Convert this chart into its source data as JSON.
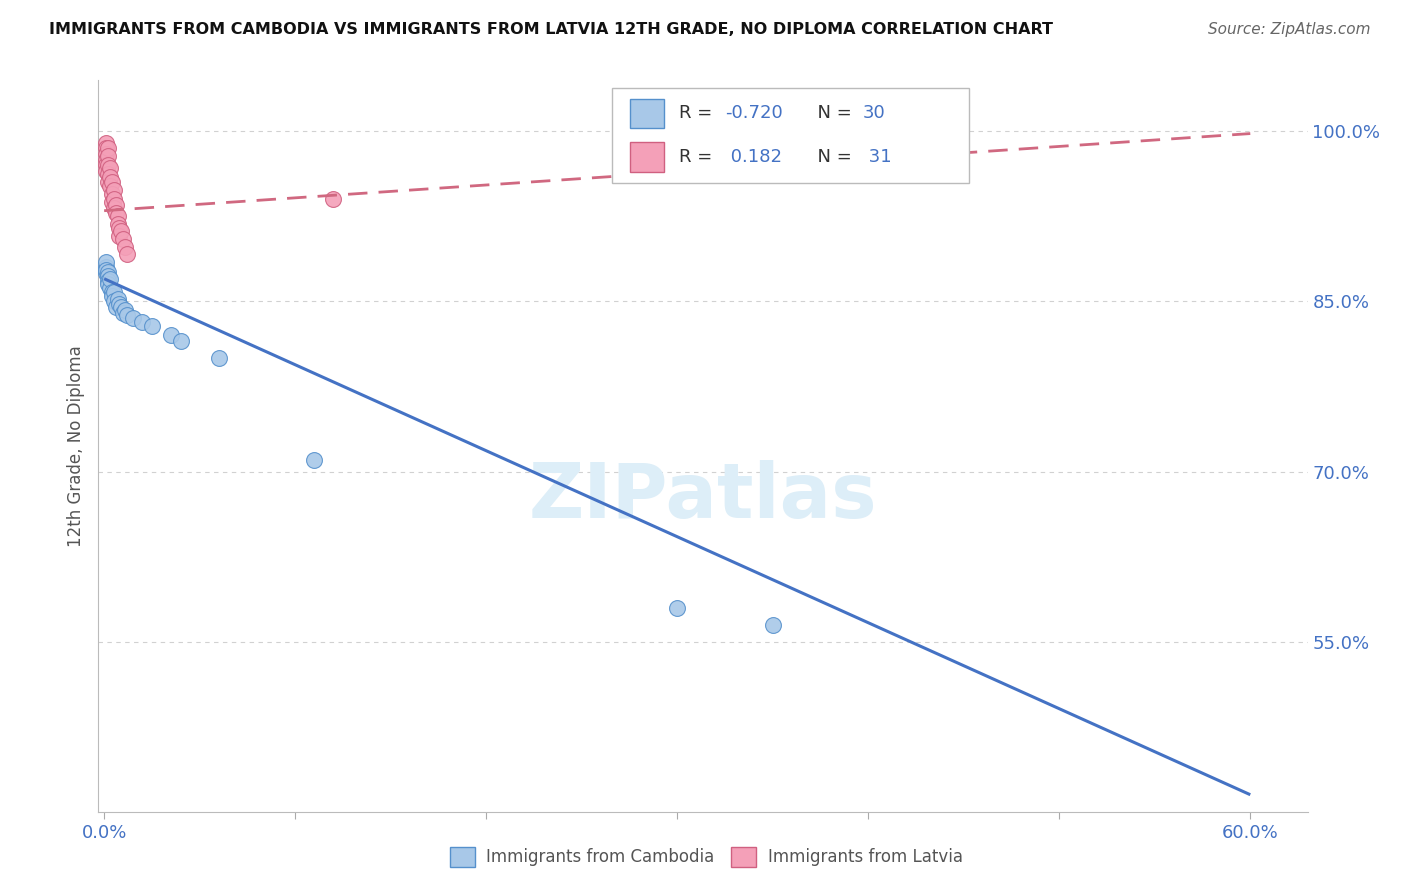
{
  "title": "IMMIGRANTS FROM CAMBODIA VS IMMIGRANTS FROM LATVIA 12TH GRADE, NO DIPLOMA CORRELATION CHART",
  "source": "Source: ZipAtlas.com",
  "ylabel": "12th Grade, No Diploma",
  "watermark": "ZIPatlas",
  "r_cambodia": -0.72,
  "n_cambodia": 30,
  "r_latvia": 0.182,
  "n_latvia": 31,
  "xlim_min": -0.003,
  "xlim_max": 0.63,
  "ylim_min": 0.4,
  "ylim_max": 1.045,
  "xtick_positions": [
    0.0,
    0.1,
    0.2,
    0.3,
    0.4,
    0.5,
    0.6
  ],
  "xticklabels": [
    "0.0%",
    "",
    "",
    "",
    "",
    "",
    "60.0%"
  ],
  "ytick_positions": [
    1.0,
    0.85,
    0.7,
    0.55
  ],
  "yticklabels": [
    "100.0%",
    "85.0%",
    "70.0%",
    "55.0%"
  ],
  "color_cambodia_fill": "#a8c8e8",
  "color_cambodia_edge": "#5590cc",
  "color_cambodia_line": "#4472c4",
  "color_latvia_fill": "#f4a0b8",
  "color_latvia_edge": "#d06080",
  "color_latvia_line": "#d06880",
  "grid_color": "#cccccc",
  "tick_color": "#4472c4",
  "title_color": "#111111",
  "source_color": "#666666",
  "watermark_color": "#ddeef8",
  "legend_text_color": "#333333",
  "legend_num_color": "#4472c4",
  "cambodia_x": [
    0.001,
    0.001,
    0.001,
    0.001,
    0.002,
    0.002,
    0.002,
    0.002,
    0.003,
    0.003,
    0.004,
    0.004,
    0.005,
    0.005,
    0.006,
    0.007,
    0.008,
    0.009,
    0.01,
    0.011,
    0.012,
    0.015,
    0.02,
    0.025,
    0.035,
    0.04,
    0.06,
    0.11,
    0.3,
    0.35
  ],
  "cambodia_y": [
    0.88,
    0.875,
    0.885,
    0.878,
    0.876,
    0.872,
    0.868,
    0.865,
    0.862,
    0.87,
    0.858,
    0.855,
    0.858,
    0.85,
    0.845,
    0.852,
    0.848,
    0.845,
    0.84,
    0.842,
    0.838,
    0.835,
    0.832,
    0.828,
    0.82,
    0.815,
    0.8,
    0.71,
    0.58,
    0.565
  ],
  "latvia_x": [
    0.001,
    0.001,
    0.001,
    0.001,
    0.001,
    0.001,
    0.002,
    0.002,
    0.002,
    0.002,
    0.002,
    0.003,
    0.003,
    0.003,
    0.004,
    0.004,
    0.004,
    0.005,
    0.005,
    0.005,
    0.006,
    0.006,
    0.007,
    0.007,
    0.008,
    0.008,
    0.009,
    0.01,
    0.011,
    0.012,
    0.12
  ],
  "latvia_y": [
    0.99,
    0.985,
    0.98,
    0.975,
    0.97,
    0.965,
    0.985,
    0.978,
    0.97,
    0.962,
    0.955,
    0.968,
    0.96,
    0.952,
    0.955,
    0.945,
    0.938,
    0.948,
    0.94,
    0.932,
    0.935,
    0.928,
    0.925,
    0.918,
    0.915,
    0.908,
    0.912,
    0.905,
    0.898,
    0.892,
    0.94
  ],
  "cam_line_x0": 0.0,
  "cam_line_x1": 0.6,
  "cam_line_y0": 0.87,
  "cam_line_y1": 0.415,
  "lat_line_x0": 0.0,
  "lat_line_x1": 0.6,
  "lat_line_y0": 0.93,
  "lat_line_y1": 0.998
}
